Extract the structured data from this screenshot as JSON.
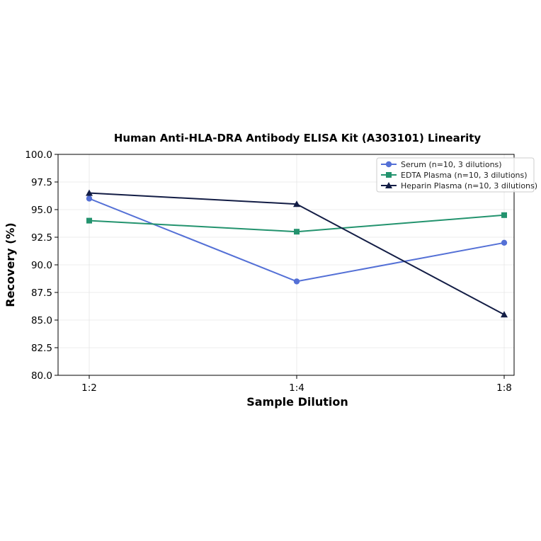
{
  "chart_data": {
    "type": "line",
    "title": "Human Anti-HLA-DRA Antibody ELISA Kit (A303101) Linearity",
    "xlabel": "Sample Dilution",
    "ylabel": "Recovery (%)",
    "categories": [
      "1:2",
      "1:4",
      "1:8"
    ],
    "ylim": [
      80.0,
      100.0
    ],
    "yticks": [
      "80.0",
      "82.5",
      "85.0",
      "87.5",
      "90.0",
      "92.5",
      "95.0",
      "97.5",
      "100.0"
    ],
    "grid": true,
    "legend_position": "top-right",
    "series": [
      {
        "name": "Serum (n=10, 3 dilutions)",
        "values": [
          96.0,
          88.5,
          92.0
        ],
        "color": "#5470d6",
        "marker": "circle"
      },
      {
        "name": "EDTA Plasma (n=10, 3 dilutions)",
        "values": [
          94.0,
          93.0,
          94.5
        ],
        "color": "#23936e",
        "marker": "square"
      },
      {
        "name": "Heparin Plasma (n=10, 3 dilutions)",
        "values": [
          96.5,
          95.5,
          85.5
        ],
        "color": "#131d45",
        "marker": "triangle"
      }
    ]
  }
}
